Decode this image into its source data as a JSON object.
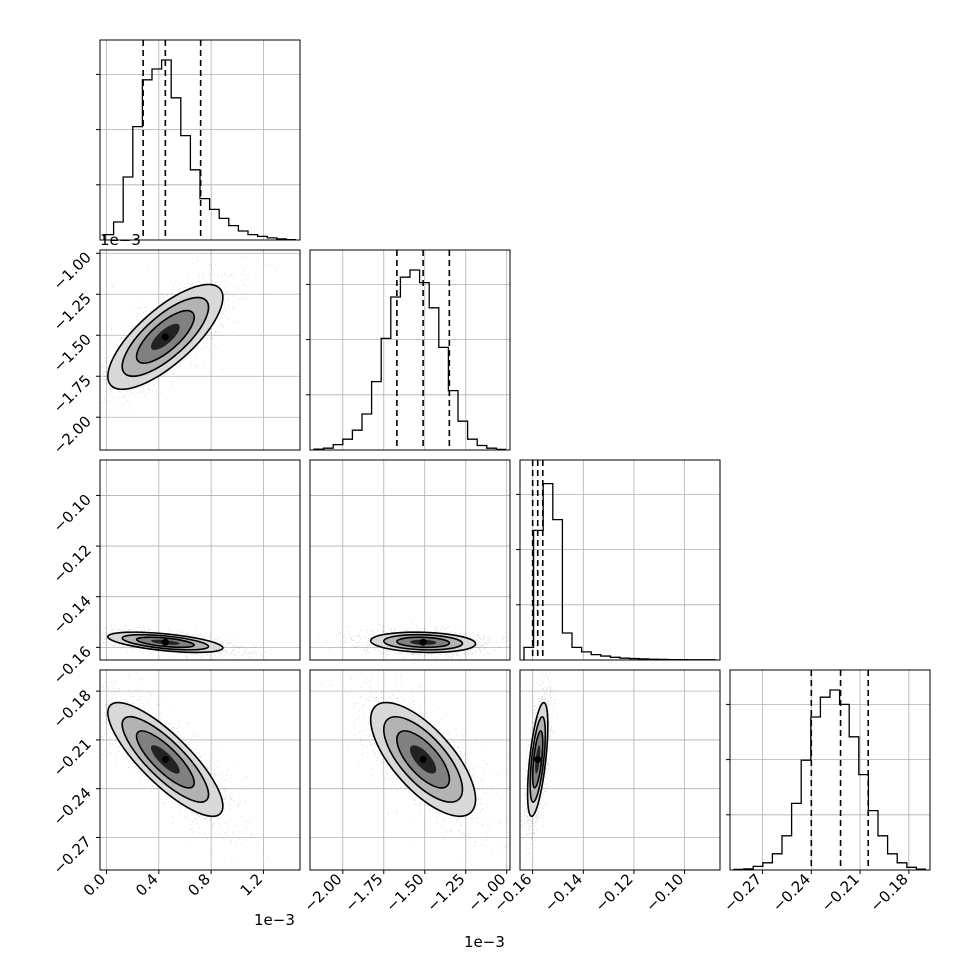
{
  "figure": {
    "offset_texts": [
      "1e−3",
      "1e−3",
      "1e−3"
    ]
  },
  "chart_data": {
    "type": "corner",
    "grid": true,
    "params": [
      {
        "id": "p0",
        "mean": 0.00045,
        "q16": 0.00028,
        "q50": 0.00045,
        "q84": 0.00072,
        "range": [
          -5e-05,
          0.00148
        ],
        "ticks": [
          0.0,
          0.0004,
          0.0008,
          0.0012
        ],
        "tick_labels": [
          "0.0",
          "0.4",
          "0.8",
          "1.2"
        ],
        "offset_text": "1e−3",
        "hist": [
          0.03,
          0.1,
          0.35,
          0.63,
          0.89,
          0.95,
          1.0,
          0.79,
          0.58,
          0.39,
          0.23,
          0.17,
          0.12,
          0.08,
          0.05,
          0.03,
          0.02,
          0.012,
          0.006,
          0.002
        ]
      },
      {
        "id": "p1",
        "mean": -0.00151,
        "q16": -0.00167,
        "q50": -0.00151,
        "q84": -0.00135,
        "range": [
          -0.0022,
          -0.00098
        ],
        "ticks": [
          -0.002,
          -0.00175,
          -0.0015,
          -0.00125,
          -0.001
        ],
        "tick_labels": [
          "−2.00",
          "−1.75",
          "−1.50",
          "−1.25",
          "−1.00"
        ],
        "offset_text": "1e−3",
        "hist": [
          0.005,
          0.01,
          0.03,
          0.06,
          0.11,
          0.2,
          0.38,
          0.62,
          0.85,
          0.96,
          1.0,
          0.93,
          0.79,
          0.57,
          0.33,
          0.16,
          0.06,
          0.025,
          0.01,
          0.003
        ]
      },
      {
        "id": "p2",
        "mean": -0.158,
        "q16": -0.16,
        "q50": -0.158,
        "q84": -0.156,
        "range": [
          -0.165,
          -0.086
        ],
        "ticks": [
          -0.16,
          -0.14,
          -0.12,
          -0.1
        ],
        "tick_labels": [
          "−0.16",
          "−0.14",
          "−0.12",
          "−0.10"
        ],
        "offset_text": "",
        "hist": [
          0.07,
          0.72,
          0.98,
          0.78,
          0.15,
          0.07,
          0.045,
          0.03,
          0.022,
          0.015,
          0.01,
          0.008,
          0.006,
          0.004,
          0.003,
          0.002,
          0.002,
          0.001,
          0.001,
          0.001
        ]
      },
      {
        "id": "p3",
        "mean": -0.222,
        "q16": -0.24,
        "q50": -0.222,
        "q84": -0.205,
        "range": [
          -0.29,
          -0.167
        ],
        "ticks": [
          -0.27,
          -0.24,
          -0.21,
          -0.18
        ],
        "tick_labels": [
          "−0.27",
          "−0.24",
          "−0.21",
          "−0.18"
        ],
        "offset_text": "",
        "hist": [
          0.003,
          0.006,
          0.02,
          0.04,
          0.09,
          0.19,
          0.37,
          0.61,
          0.85,
          0.96,
          1.0,
          0.92,
          0.74,
          0.53,
          0.33,
          0.19,
          0.09,
          0.04,
          0.015,
          0.005
        ]
      }
    ],
    "pairs": [
      {
        "x": "p0",
        "y": "p1",
        "corr": 0.75
      },
      {
        "x": "p0",
        "y": "p2",
        "corr": -0.55
      },
      {
        "x": "p1",
        "y": "p2",
        "corr": -0.15
      },
      {
        "x": "p0",
        "y": "p3",
        "corr": -0.82
      },
      {
        "x": "p1",
        "y": "p3",
        "corr": -0.7
      },
      {
        "x": "p2",
        "y": "p3",
        "corr": 0.6
      }
    ]
  }
}
